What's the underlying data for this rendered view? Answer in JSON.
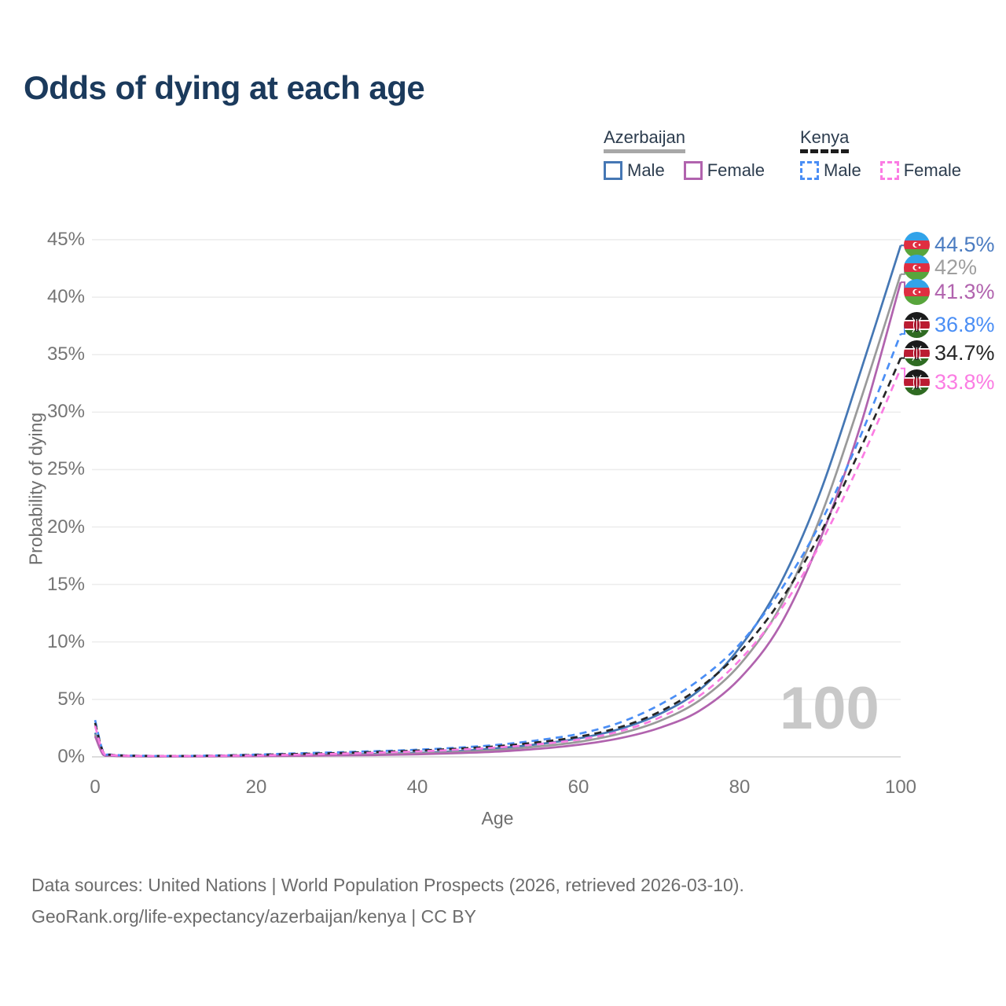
{
  "title": "Odds of dying at each age",
  "watermark": "100",
  "legend": {
    "groups": [
      {
        "label": "Azerbaijan",
        "line_style": "solid",
        "underline_color": "#a8a8a8",
        "items": [
          {
            "label": "Male",
            "color": "#4577b4"
          },
          {
            "label": "Female",
            "color": "#b163ae"
          }
        ]
      },
      {
        "label": "Kenya",
        "line_style": "dashed",
        "underline_color": "#1c1c1c",
        "items": [
          {
            "label": "Male",
            "color": "#4a8ef5"
          },
          {
            "label": "Female",
            "color": "#fb7ce3"
          }
        ]
      }
    ]
  },
  "end_labels": [
    {
      "value": "44.5%",
      "color": "#4b7cc1",
      "flag": "azerbaijan",
      "series": "Azerbaijan Male"
    },
    {
      "value": "42%",
      "color": "#9e9e9e",
      "flag": "azerbaijan",
      "series": "Azerbaijan Both sexes"
    },
    {
      "value": "41.3%",
      "color": "#b163ae",
      "flag": "azerbaijan",
      "series": "Azerbaijan Female"
    },
    {
      "value": "36.8%",
      "color": "#4a8ef5",
      "flag": "kenya",
      "series": "Kenya Male"
    },
    {
      "value": "34.7%",
      "color": "#262626",
      "flag": "kenya",
      "series": "Kenya Both sexes"
    },
    {
      "value": "33.8%",
      "color": "#fb7ce3",
      "flag": "kenya",
      "series": "Kenya Female"
    }
  ],
  "footer": {
    "line1": "Data sources: United Nations | World Population Prospects (2026, retrieved 2026-03-10).",
    "line2": "GeoRank.org/life-expectancy/azerbaijan/kenya | CC BY"
  },
  "chart_data": {
    "type": "line",
    "title": "Odds of dying at each age",
    "xlabel": "Age",
    "ylabel": "Probability of dying",
    "xlim": [
      0,
      100
    ],
    "ylim_percent": [
      0,
      45
    ],
    "grid": "horizontal",
    "legend_position": "top-right",
    "x_ticks": [
      0,
      20,
      40,
      60,
      80,
      100
    ],
    "x_tick_labels": [
      "0",
      "20",
      "40",
      "60",
      "80",
      "100"
    ],
    "y_ticks_percent": [
      0,
      5,
      10,
      15,
      20,
      25,
      30,
      35,
      40,
      45
    ],
    "y_tick_labels": [
      "0%",
      "5%",
      "10%",
      "15%",
      "20%",
      "25%",
      "30%",
      "35%",
      "40%",
      "45%"
    ],
    "ages": [
      0,
      1,
      2,
      5,
      10,
      15,
      20,
      25,
      30,
      35,
      40,
      45,
      50,
      55,
      60,
      65,
      70,
      75,
      80,
      85,
      90,
      95,
      100
    ],
    "series": [
      {
        "name": "Azerbaijan Male",
        "country": "Azerbaijan",
        "sex": "Male",
        "color": "#4577b4",
        "dash": false,
        "values": [
          2.1,
          0.25,
          0.12,
          0.06,
          0.05,
          0.08,
          0.13,
          0.16,
          0.2,
          0.26,
          0.35,
          0.5,
          0.75,
          1.1,
          1.6,
          2.4,
          3.7,
          5.8,
          9.5,
          15.0,
          23.0,
          33.5,
          44.5
        ]
      },
      {
        "name": "Azerbaijan Both sexes",
        "country": "Azerbaijan",
        "sex": "Both",
        "color": "#9a9a9a",
        "dash": false,
        "values": [
          1.95,
          0.21,
          0.11,
          0.055,
          0.045,
          0.065,
          0.1,
          0.13,
          0.16,
          0.21,
          0.29,
          0.41,
          0.6,
          0.9,
          1.3,
          2.0,
          3.1,
          4.9,
          8.0,
          13.0,
          20.8,
          31.0,
          42.0
        ]
      },
      {
        "name": "Azerbaijan Female",
        "country": "Azerbaijan",
        "sex": "Female",
        "color": "#b163ae",
        "dash": false,
        "values": [
          1.8,
          0.18,
          0.1,
          0.05,
          0.04,
          0.05,
          0.07,
          0.09,
          0.12,
          0.16,
          0.22,
          0.32,
          0.46,
          0.7,
          1.05,
          1.6,
          2.5,
          4.0,
          6.8,
          11.4,
          18.9,
          28.8,
          41.3
        ]
      },
      {
        "name": "Kenya Male",
        "country": "Kenya",
        "sex": "Male",
        "color": "#4a8ef5",
        "dash": true,
        "values": [
          3.2,
          0.45,
          0.2,
          0.1,
          0.08,
          0.12,
          0.2,
          0.3,
          0.4,
          0.5,
          0.62,
          0.8,
          1.05,
          1.45,
          2.0,
          2.95,
          4.5,
          6.7,
          9.8,
          14.4,
          20.3,
          27.9,
          36.8
        ]
      },
      {
        "name": "Kenya Both sexes",
        "country": "Kenya",
        "sex": "Both",
        "color": "#262626",
        "dash": true,
        "values": [
          2.95,
          0.42,
          0.18,
          0.095,
          0.075,
          0.105,
          0.17,
          0.25,
          0.33,
          0.43,
          0.55,
          0.71,
          0.93,
          1.27,
          1.75,
          2.55,
          3.9,
          6.0,
          9.1,
          13.5,
          19.4,
          26.8,
          34.7
        ]
      },
      {
        "name": "Kenya Female",
        "country": "Kenya",
        "sex": "Female",
        "color": "#fb7ce3",
        "dash": true,
        "values": [
          2.7,
          0.38,
          0.16,
          0.09,
          0.07,
          0.09,
          0.13,
          0.19,
          0.27,
          0.36,
          0.47,
          0.62,
          0.82,
          1.1,
          1.5,
          2.2,
          3.4,
          5.3,
          8.4,
          12.7,
          18.5,
          25.7,
          33.8
        ]
      }
    ]
  }
}
